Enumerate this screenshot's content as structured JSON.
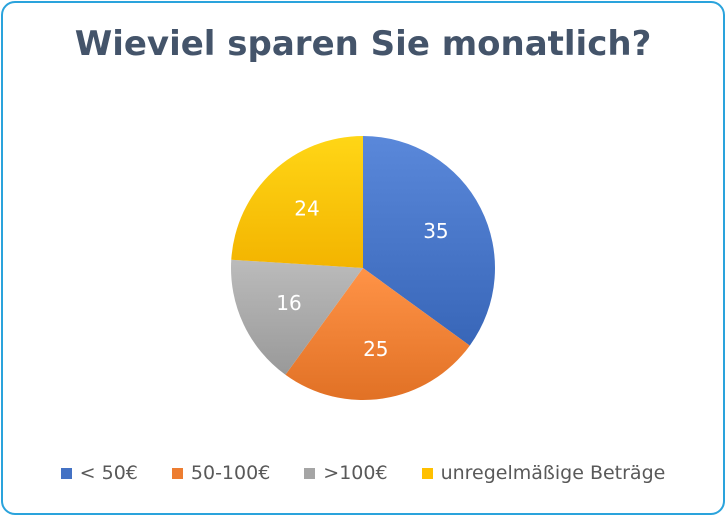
{
  "chart_data": {
    "type": "pie",
    "title": "Wieviel sparen Sie monatlich?",
    "categories": [
      "< 50€",
      "50-100€",
      ">100€",
      "unregelmäßige Beträge"
    ],
    "values": [
      35,
      25,
      16,
      24
    ],
    "colors": [
      "#4472c4",
      "#ed7d31",
      "#a5a5a5",
      "#ffc000"
    ],
    "data_labels": [
      "35",
      "25",
      "16",
      "24"
    ],
    "start_angle": "12 o'clock, clockwise",
    "legend_position": "bottom"
  },
  "frame_color": "#2aa3dc"
}
